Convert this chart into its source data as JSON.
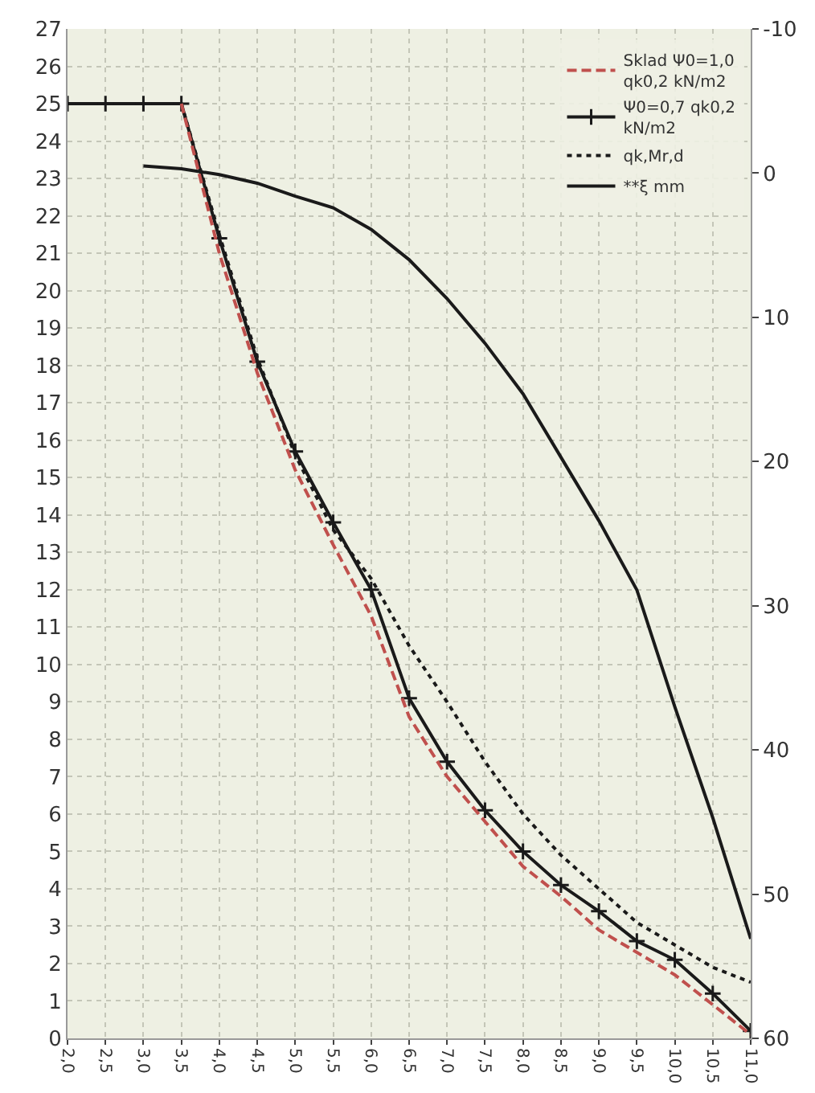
{
  "chart_data": {
    "type": "line",
    "x": [
      2.0,
      2.5,
      3.0,
      3.5,
      4.0,
      4.5,
      5.0,
      5.5,
      6.0,
      6.5,
      7.0,
      7.5,
      8.0,
      8.5,
      9.0,
      9.5,
      10.0,
      10.5,
      11.0
    ],
    "series": [
      {
        "name": "Sklad Ψ0=1,0 qk0,2 kN/m2",
        "color": "#c0504d",
        "line_style": "dashed",
        "marker": "none",
        "values": [
          null,
          null,
          null,
          25,
          21,
          17.8,
          15.2,
          13.2,
          11.3,
          8.6,
          7.0,
          5.8,
          4.6,
          3.8,
          2.9,
          2.3,
          1.7,
          0.9,
          0.1
        ]
      },
      {
        "name": "Ψ0=0,7 qk0,2 kN/m2",
        "color": "#1a1a1a",
        "line_style": "solid",
        "marker": "cross",
        "values": [
          25,
          25,
          25,
          25,
          21.4,
          18.1,
          15.7,
          13.8,
          12.0,
          9.1,
          7.4,
          6.1,
          5.0,
          4.1,
          3.4,
          2.6,
          2.1,
          1.2,
          0.2
        ]
      },
      {
        "name": "qk,Mr,d",
        "color": "#1a1a1a",
        "line_style": "dotted",
        "marker": "none",
        "values": [
          null,
          null,
          null,
          25,
          21.5,
          18.2,
          15.6,
          13.6,
          12.3,
          10.5,
          9.0,
          7.4,
          6.0,
          4.9,
          4.0,
          3.1,
          2.5,
          1.9,
          1.5
        ]
      },
      {
        "name": "**ξ mm",
        "color": "#1a1a1a",
        "line_style": "solid",
        "marker": "none",
        "axis": "y2",
        "values": [
          null,
          null,
          -0.5,
          -0.3,
          0.1,
          0.7,
          1.6,
          2.4,
          3.9,
          6.0,
          8.7,
          11.8,
          15.3,
          19.7,
          24.1,
          28.9,
          37,
          44.7,
          53.1
        ]
      }
    ],
    "xlim": [
      2.0,
      11.0
    ],
    "xticks": [
      {
        "value": 2.0,
        "label": "2,0"
      },
      {
        "value": 2.5,
        "label": "2,5"
      },
      {
        "value": 3.0,
        "label": "3,0"
      },
      {
        "value": 3.5,
        "label": "3,5"
      },
      {
        "value": 4.0,
        "label": "4,0"
      },
      {
        "value": 4.5,
        "label": "4,5"
      },
      {
        "value": 5.0,
        "label": "5,0"
      },
      {
        "value": 5.5,
        "label": "5,5"
      },
      {
        "value": 6.0,
        "label": "6,0"
      },
      {
        "value": 6.5,
        "label": "6,5"
      },
      {
        "value": 7.0,
        "label": "7,0"
      },
      {
        "value": 7.5,
        "label": "7,5"
      },
      {
        "value": 8.0,
        "label": "8,0"
      },
      {
        "value": 8.5,
        "label": "8,5"
      },
      {
        "value": 9.0,
        "label": "9,0"
      },
      {
        "value": 9.5,
        "label": "9,5"
      },
      {
        "value": 10.0,
        "label": "10,0"
      },
      {
        "value": 10.5,
        "label": "10,5"
      },
      {
        "value": 11.0,
        "label": "11,0"
      }
    ],
    "ylim": [
      0,
      27
    ],
    "yticks": [
      0,
      1,
      2,
      3,
      4,
      5,
      6,
      7,
      8,
      9,
      10,
      11,
      12,
      13,
      14,
      15,
      16,
      17,
      18,
      19,
      20,
      21,
      22,
      23,
      24,
      25,
      26,
      27
    ],
    "y2lim": [
      60,
      -10
    ],
    "y2ticks": [
      -10,
      0,
      10,
      20,
      30,
      40,
      50,
      60
    ],
    "grid": true,
    "legend": "top right"
  }
}
